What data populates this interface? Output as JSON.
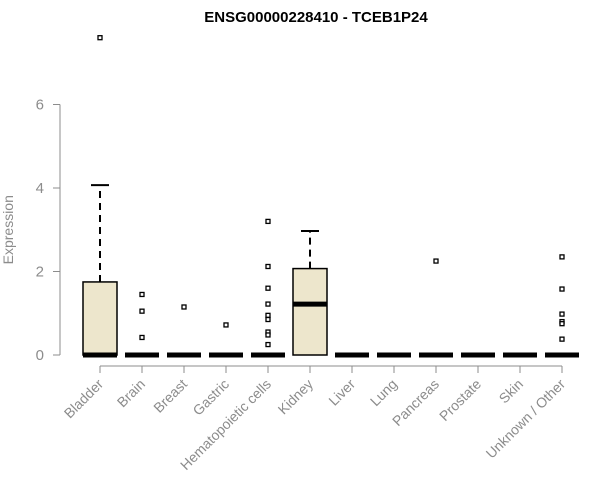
{
  "chart_data": {
    "type": "box",
    "title": "ENSG00000228410 - TCEB1P24",
    "xlabel": "",
    "ylabel": "Expression",
    "ylim": [
      0,
      7.5
    ],
    "yticks": [
      0,
      2,
      4,
      6
    ],
    "box_fill": "#ede6cc",
    "categories": [
      "Bladder",
      "Brain",
      "Breast",
      "Gastric",
      "Hematopoietic cells",
      "Kidney",
      "Liver",
      "Lung",
      "Pancreas",
      "Prostate",
      "Skin",
      "Unknown / Other"
    ],
    "boxes": [
      {
        "category": "Bladder",
        "min": 0,
        "q1": 0,
        "median": 0,
        "q3": 1.75,
        "max": 4.07,
        "outliers": [
          7.6
        ]
      },
      {
        "category": "Brain",
        "min": 0,
        "q1": 0,
        "median": 0,
        "q3": 0,
        "max": 0,
        "outliers": [
          1.45,
          1.05,
          0.42
        ]
      },
      {
        "category": "Breast",
        "min": 0,
        "q1": 0,
        "median": 0,
        "q3": 0,
        "max": 0,
        "outliers": [
          1.15
        ]
      },
      {
        "category": "Gastric",
        "min": 0,
        "q1": 0,
        "median": 0,
        "q3": 0,
        "max": 0,
        "outliers": [
          0.72
        ]
      },
      {
        "category": "Hematopoietic cells",
        "min": 0,
        "q1": 0,
        "median": 0,
        "q3": 0,
        "max": 0,
        "outliers": [
          3.2,
          2.12,
          1.6,
          1.22,
          0.95,
          0.85,
          0.55,
          0.48,
          0.25
        ]
      },
      {
        "category": "Kidney",
        "min": 0,
        "q1": 0,
        "median": 1.22,
        "q3": 2.07,
        "max": 2.97,
        "outliers": []
      },
      {
        "category": "Liver",
        "min": 0,
        "q1": 0,
        "median": 0,
        "q3": 0,
        "max": 0,
        "outliers": []
      },
      {
        "category": "Lung",
        "min": 0,
        "q1": 0,
        "median": 0,
        "q3": 0,
        "max": 0,
        "outliers": []
      },
      {
        "category": "Pancreas",
        "min": 0,
        "q1": 0,
        "median": 0,
        "q3": 0,
        "max": 0,
        "outliers": [
          2.25
        ]
      },
      {
        "category": "Prostate",
        "min": 0,
        "q1": 0,
        "median": 0,
        "q3": 0,
        "max": 0,
        "outliers": []
      },
      {
        "category": "Skin",
        "min": 0,
        "q1": 0,
        "median": 0,
        "q3": 0,
        "max": 0,
        "outliers": []
      },
      {
        "category": "Unknown / Other",
        "min": 0,
        "q1": 0,
        "median": 0,
        "q3": 0,
        "max": 0,
        "outliers": [
          2.35,
          1.58,
          0.98,
          0.8,
          0.75,
          0.38
        ]
      }
    ]
  }
}
